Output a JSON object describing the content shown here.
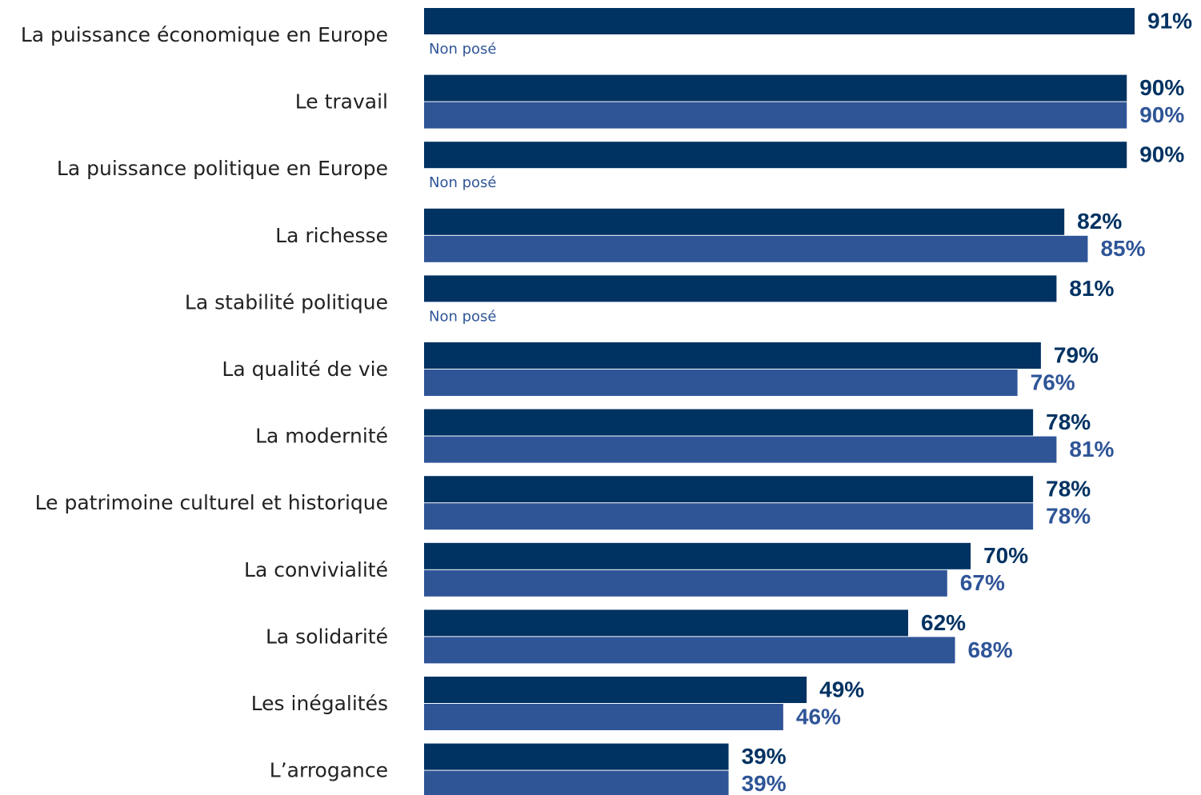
{
  "chart_data": {
    "type": "bar",
    "orientation": "horizontal",
    "categories": [
      "La puissance économique en Europe",
      "Le travail",
      "La puissance politique en Europe",
      "La richesse",
      "La stabilité politique",
      "La qualité de vie",
      "La modernité",
      "Le patrimoine culturel et historique",
      "La convivialité",
      "La solidarité",
      "Les inégalités",
      "L’arrogance"
    ],
    "missing_label": "Non posé",
    "series": [
      {
        "color": "#003262",
        "values": [
          91,
          90,
          90,
          82,
          81,
          79,
          78,
          78,
          70,
          62,
          49,
          39
        ],
        "value_labels": [
          "91%",
          "90%",
          "90%",
          "82%",
          "81%",
          "79%",
          "78%",
          "78%",
          "70%",
          "62%",
          "49%",
          "39%"
        ]
      },
      {
        "color": "#2f5597",
        "values": [
          null,
          90,
          null,
          85,
          null,
          76,
          81,
          78,
          67,
          68,
          46,
          39
        ],
        "value_labels": [
          null,
          "90%",
          null,
          "85%",
          null,
          "76%",
          "81%",
          "78%",
          "67%",
          "68%",
          "46%",
          "39%"
        ]
      }
    ]
  }
}
